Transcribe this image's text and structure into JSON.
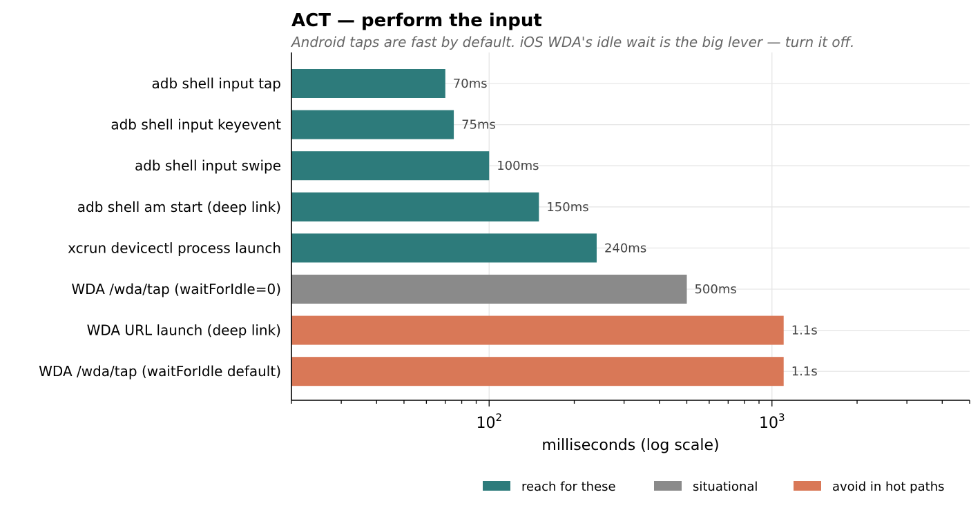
{
  "chart_data": {
    "type": "bar",
    "orientation": "horizontal",
    "title": "ACT — perform the input",
    "subtitle": "Android taps are fast by default. iOS WDA's idle wait is the big lever — turn it off.",
    "xlabel": "milliseconds (log scale)",
    "ylabel": "",
    "xscale": "log",
    "xlim": [
      20,
      5000
    ],
    "x_ticks": [
      {
        "value": 100,
        "base": "10",
        "exp": "2"
      },
      {
        "value": 1000,
        "base": "10",
        "exp": "3"
      }
    ],
    "grid": true,
    "legend_position": "bottom-right",
    "categories": [
      "adb shell input tap",
      "adb shell input keyevent",
      "adb shell input swipe",
      "adb shell am start (deep link)",
      "xcrun devicectl process launch",
      "WDA /wda/tap (waitForIdle=0)",
      "WDA URL launch (deep link)",
      "WDA /wda/tap (waitForIdle default)"
    ],
    "values": [
      70,
      75,
      100,
      150,
      240,
      500,
      1100,
      1100
    ],
    "value_labels": [
      "70ms",
      "75ms",
      "100ms",
      "150ms",
      "240ms",
      "500ms",
      "1.1s",
      "1.1s"
    ],
    "groups": [
      "reach",
      "reach",
      "reach",
      "reach",
      "reach",
      "situational",
      "avoid",
      "avoid"
    ],
    "legend": [
      {
        "key": "reach",
        "label": "reach for these",
        "color": "#2d7b7b"
      },
      {
        "key": "situational",
        "label": "situational",
        "color": "#8a8a8a"
      },
      {
        "key": "avoid",
        "label": "avoid in hot paths",
        "color": "#d97857"
      }
    ]
  }
}
